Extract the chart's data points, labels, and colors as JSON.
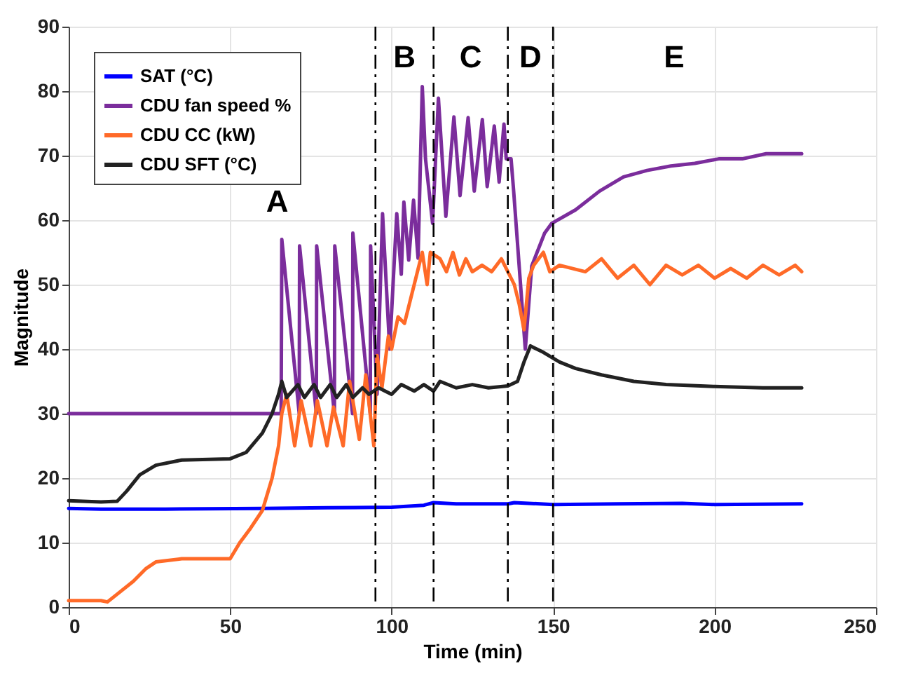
{
  "chart_data": {
    "type": "line",
    "xlabel": "Time (min)",
    "ylabel": "Magnitude",
    "xlim": [
      0,
      250
    ],
    "xticks": [
      0,
      50,
      100,
      150,
      200,
      250
    ],
    "ylim": [
      0,
      90
    ],
    "yticks": [
      0,
      10,
      20,
      30,
      40,
      50,
      60,
      70,
      80,
      90
    ],
    "grid": true,
    "legend": "top left",
    "marker": "none",
    "line_style": "solid",
    "series": [
      {
        "name": "SAT (°C)",
        "color": "#0000ff",
        "x": [
          0,
          10,
          30,
          60,
          80,
          100,
          110,
          113,
          120,
          136,
          138,
          150,
          170,
          190,
          200,
          227
        ],
        "values": [
          15.3,
          15.2,
          15.2,
          15.3,
          15.4,
          15.5,
          15.8,
          16.2,
          16.0,
          16.0,
          16.2,
          15.9,
          16.0,
          16.1,
          15.9,
          16.0
        ]
      },
      {
        "name": "CDU fan speed %",
        "color": "#7b2d9c",
        "x": [
          0,
          65.8,
          66,
          71.4,
          71.5,
          76.7,
          76.8,
          82.3,
          82.4,
          87.9,
          88,
          93.4,
          93.5,
          95.5,
          97.2,
          99.4,
          101.6,
          103,
          103.8,
          105.3,
          106.8,
          108.2,
          109.5,
          110.5,
          112.7,
          114.5,
          116.8,
          119.3,
          121.2,
          123.7,
          125.6,
          128.1,
          129.6,
          131.8,
          133.3,
          134.8,
          135.5,
          137,
          137.8,
          141.4,
          143.4,
          147.4,
          149.6,
          157,
          164.4,
          171.8,
          179.1,
          186.5,
          193.9,
          201.3,
          208.6,
          216,
          227
        ],
        "values": [
          30,
          30,
          57,
          30,
          56,
          30,
          56,
          30,
          56,
          30,
          58,
          30,
          56,
          33,
          61,
          40,
          61,
          51.6,
          62.8,
          53.8,
          63.1,
          54.1,
          80.7,
          69.5,
          59.5,
          78.9,
          60.6,
          76,
          63.8,
          75.9,
          64.5,
          75.6,
          65.2,
          74.6,
          65.9,
          74.9,
          69.5,
          69.5,
          64.5,
          40,
          52.9,
          58,
          59.5,
          61.6,
          64.5,
          66.7,
          67.7,
          68.4,
          68.8,
          69.5,
          69.5,
          70.3,
          70.3
        ]
      },
      {
        "name": "CDU CC (kW)",
        "color": "#ff6a28",
        "x": [
          0,
          10,
          12,
          15,
          20,
          24,
          27,
          35,
          50,
          53,
          56,
          60,
          63,
          65,
          66,
          67.5,
          70,
          72,
          75,
          77,
          80,
          82,
          85,
          87,
          90,
          92,
          94.5,
          95.5,
          97,
          99,
          100,
          102,
          104,
          106,
          108,
          109.5,
          111,
          112,
          115,
          117,
          119,
          121,
          123,
          125,
          128,
          131,
          134,
          136,
          138,
          139.5,
          141,
          142.5,
          144,
          147,
          149,
          152,
          160,
          165,
          170,
          175,
          180,
          185,
          190,
          195,
          200,
          205,
          210,
          215,
          220,
          225,
          227
        ],
        "values": [
          1,
          1,
          0.8,
          2,
          4,
          6,
          7,
          7.5,
          7.5,
          10,
          12,
          15,
          20,
          25,
          30,
          33,
          25,
          32,
          25,
          32,
          25,
          31,
          25,
          35,
          26,
          36,
          25,
          39,
          34,
          42,
          40,
          45,
          44,
          48,
          52,
          55,
          50,
          55,
          54,
          52,
          55,
          51.5,
          54,
          52,
          53,
          52,
          54,
          52,
          50,
          47,
          43,
          51,
          53,
          55,
          52,
          53,
          52,
          54,
          51,
          53,
          50,
          53,
          51.5,
          53,
          51,
          52.5,
          51,
          53,
          51.5,
          53,
          52
        ]
      },
      {
        "name": "CDU SFT (°C)",
        "color": "#222222",
        "x": [
          0,
          10,
          15,
          18,
          22,
          27,
          35,
          50,
          55,
          60,
          63,
          65,
          66,
          67.5,
          71,
          73,
          76,
          78,
          81,
          83,
          86,
          88,
          91,
          93,
          96,
          100,
          103,
          107,
          110,
          113,
          115,
          120,
          125,
          130,
          136,
          139,
          141,
          143,
          147,
          152,
          157,
          165,
          175,
          185,
          200,
          215,
          227
        ],
        "values": [
          16.5,
          16.3,
          16.4,
          18,
          20.5,
          22,
          22.8,
          23,
          24,
          27,
          30,
          33,
          35,
          32.5,
          34.5,
          32.5,
          34.5,
          32.5,
          34.5,
          32.5,
          34.5,
          32.5,
          34,
          33,
          34,
          33,
          34.5,
          33.5,
          34.5,
          33.5,
          35,
          34,
          34.5,
          34,
          34.3,
          35,
          38,
          40.5,
          39.5,
          38,
          37,
          36,
          35,
          34.5,
          34.2,
          34,
          34
        ]
      }
    ],
    "ref_lines": [
      {
        "axis": "x",
        "value": 95,
        "color": "#000000",
        "line_style": "dashed"
      },
      {
        "axis": "x",
        "value": 113,
        "color": "#000000",
        "line_style": "dashed"
      },
      {
        "axis": "x",
        "value": 136,
        "color": "#000000",
        "line_style": "dashed"
      },
      {
        "axis": "x",
        "value": 150,
        "color": "#000000",
        "line_style": "dashed"
      }
    ],
    "annotations": [
      "A",
      "B",
      "C",
      "D",
      "E"
    ]
  }
}
